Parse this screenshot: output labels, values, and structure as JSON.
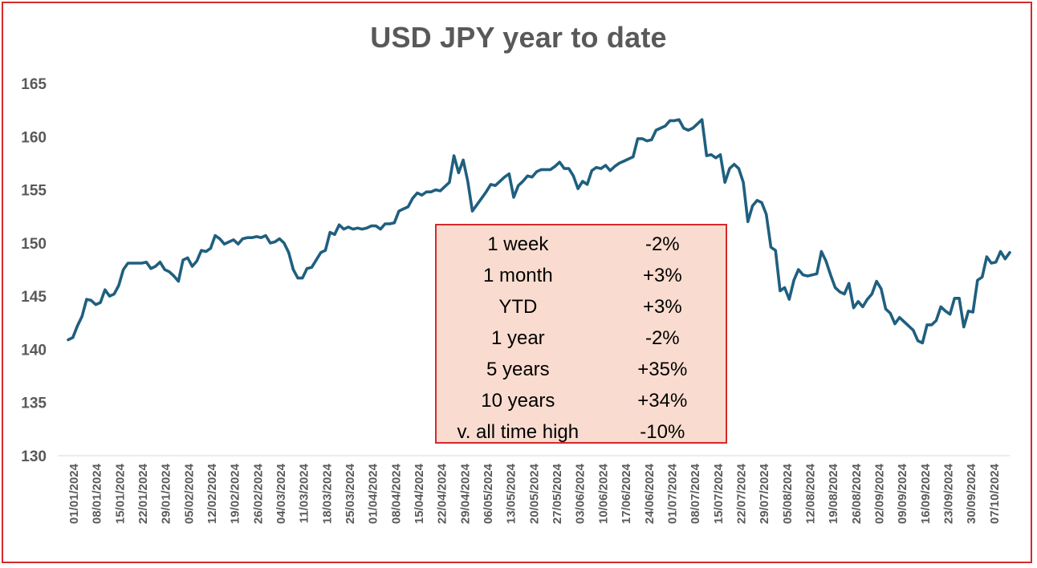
{
  "chart_data": {
    "type": "line",
    "title": "USD JPY year to date",
    "xlabel": "",
    "ylabel": "",
    "ylim": [
      130,
      165
    ],
    "yticks": [
      130,
      135,
      140,
      145,
      150,
      155,
      160,
      165
    ],
    "grid": "horizontal baseline only",
    "series_color": "#1f5f7f",
    "x_tick_labels": [
      "01/01/2024",
      "08/01/2024",
      "15/01/2024",
      "22/01/2024",
      "29/01/2024",
      "05/02/2024",
      "12/02/2024",
      "19/02/2024",
      "26/02/2024",
      "04/03/2024",
      "11/03/2024",
      "18/03/2024",
      "25/03/2024",
      "01/04/2024",
      "08/04/2024",
      "15/04/2024",
      "22/04/2024",
      "29/04/2024",
      "06/05/2024",
      "13/05/2024",
      "20/05/2024",
      "27/05/2024",
      "03/06/2024",
      "10/06/2024",
      "17/06/2024",
      "24/06/2024",
      "01/07/2024",
      "08/07/2024",
      "15/07/2024",
      "22/07/2024",
      "29/07/2024",
      "05/08/2024",
      "12/08/2024",
      "19/08/2024",
      "26/08/2024",
      "02/09/2024",
      "09/09/2024",
      "16/09/2024",
      "23/09/2024",
      "30/09/2024",
      "07/10/2024"
    ],
    "series": [
      {
        "name": "USD JPY",
        "values": [
          140.9,
          141.1,
          142.2,
          143.1,
          144.7,
          144.6,
          144.2,
          144.4,
          145.6,
          145.0,
          145.2,
          146.0,
          147.5,
          148.1,
          148.1,
          148.1,
          148.1,
          148.2,
          147.6,
          147.8,
          148.2,
          147.5,
          147.3,
          146.9,
          146.4,
          148.4,
          148.6,
          147.8,
          148.3,
          149.3,
          149.2,
          149.5,
          150.7,
          150.4,
          149.9,
          150.1,
          150.3,
          149.9,
          150.4,
          150.5,
          150.5,
          150.6,
          150.5,
          150.7,
          150.0,
          150.1,
          150.4,
          150.0,
          149.1,
          147.5,
          146.7,
          146.7,
          147.6,
          147.7,
          148.4,
          149.1,
          149.3,
          151.0,
          150.8,
          151.7,
          151.3,
          151.5,
          151.3,
          151.4,
          151.3,
          151.4,
          151.6,
          151.6,
          151.3,
          151.8,
          151.8,
          151.9,
          153.0,
          153.2,
          153.4,
          154.2,
          154.7,
          154.5,
          154.8,
          154.8,
          155.0,
          154.9,
          155.3,
          155.7,
          158.2,
          156.6,
          157.8,
          155.8,
          153.0,
          153.6,
          154.2,
          154.8,
          155.5,
          155.4,
          155.8,
          156.2,
          156.5,
          154.3,
          155.4,
          155.8,
          156.3,
          156.2,
          156.7,
          156.9,
          156.9,
          156.9,
          157.2,
          157.6,
          157.0,
          157.0,
          156.3,
          155.1,
          155.8,
          155.5,
          156.8,
          157.1,
          157.0,
          157.3,
          156.8,
          157.2,
          157.5,
          157.7,
          157.9,
          158.1,
          159.8,
          159.8,
          159.6,
          159.7,
          160.6,
          160.8,
          161.0,
          161.5,
          161.5,
          161.6,
          160.8,
          160.6,
          160.8,
          161.2,
          161.6,
          158.2,
          158.3,
          158.0,
          158.3,
          155.7,
          157.0,
          157.4,
          157.0,
          155.7,
          152.0,
          153.5,
          154.0,
          153.8,
          152.7,
          149.6,
          149.3,
          145.5,
          145.8,
          144.7,
          146.5,
          147.5,
          147.0,
          146.9,
          147.0,
          147.1,
          149.2,
          148.3,
          147.0,
          145.8,
          145.4,
          145.2,
          146.2,
          143.9,
          144.5,
          144.0,
          144.7,
          145.2,
          146.4,
          145.7,
          143.8,
          143.4,
          142.4,
          143.0,
          142.6,
          142.2,
          141.8,
          140.8,
          140.6,
          142.3,
          142.3,
          142.7,
          144.0,
          143.6,
          143.3,
          144.8,
          144.8,
          142.1,
          143.6,
          143.5,
          146.5,
          146.8,
          148.7,
          148.1,
          148.2,
          149.2,
          148.5,
          149.1
        ]
      }
    ]
  },
  "stats": [
    {
      "label": "1 week",
      "value": "-2%"
    },
    {
      "label": "1 month",
      "value": "+3%"
    },
    {
      "label": "YTD",
      "value": "+3%"
    },
    {
      "label": "1 year",
      "value": "-2%"
    },
    {
      "label": "5 years",
      "value": "+35%"
    },
    {
      "label": "10 years",
      "value": "+34%"
    },
    {
      "label": "v. all time high",
      "value": "-10%"
    }
  ],
  "colors": {
    "border": "#d42a2a",
    "line": "#1f5f7f",
    "stats_fill": "#f9dccf",
    "text": "#595959"
  }
}
